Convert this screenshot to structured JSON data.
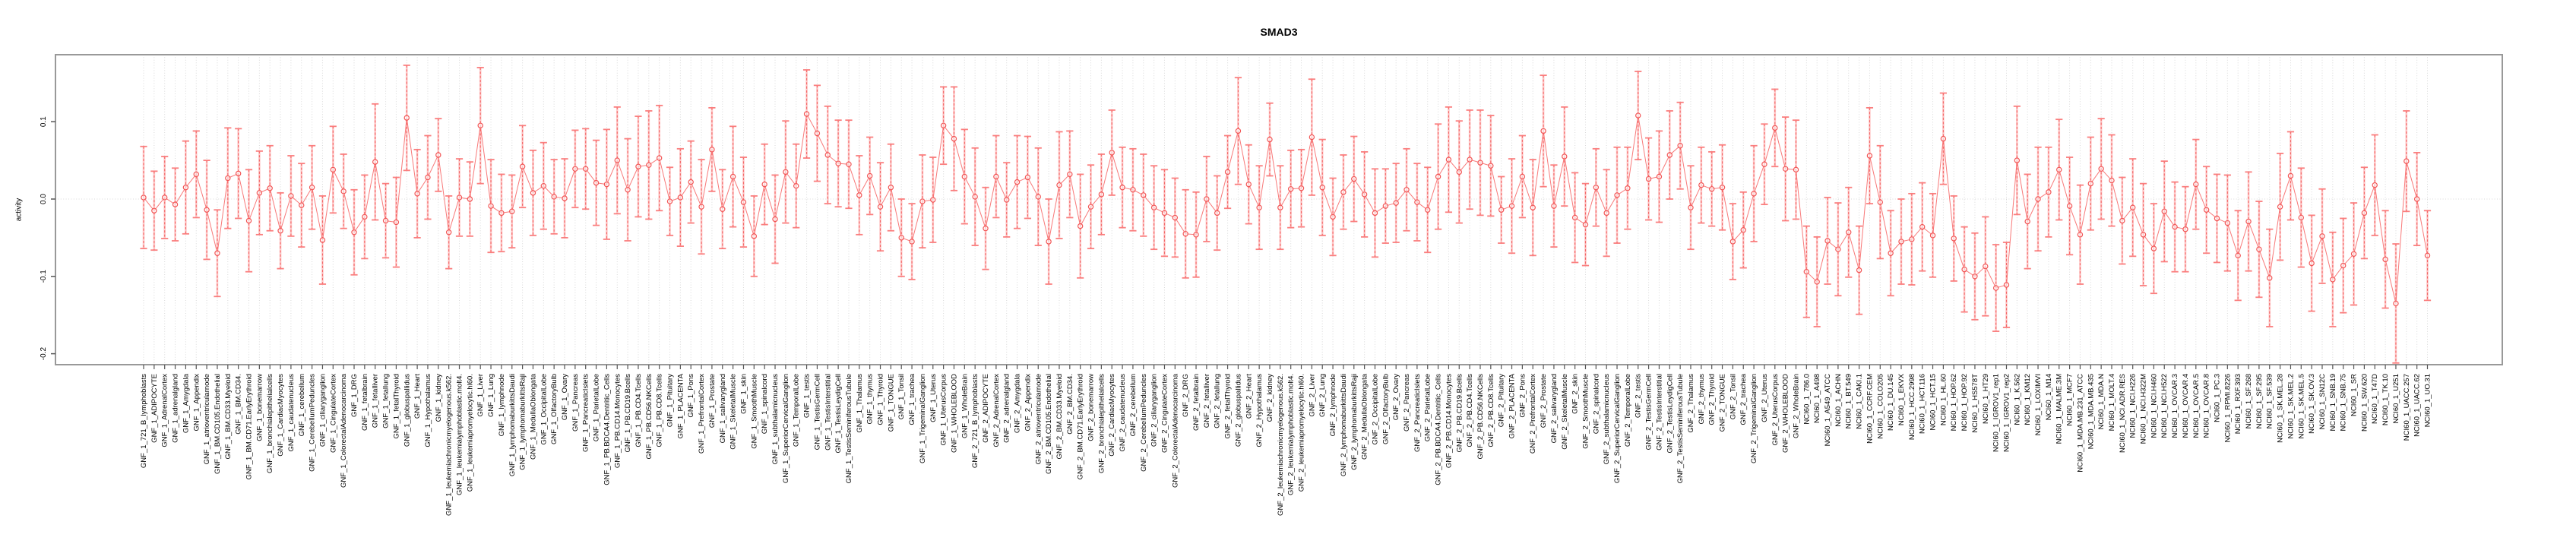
{
  "chart_data": {
    "type": "line",
    "title": "SMAD3",
    "xlabel": "",
    "ylabel": "activity",
    "ylim": [
      -0.214,
      0.187
    ],
    "yticks": [
      0.1,
      0.0,
      -0.1,
      -0.2
    ],
    "ytick_labels": [
      "0.1",
      "0.0",
      "-0.1",
      "-0.2"
    ],
    "grid": "vertical-dotted-per-category-plus-zero-line",
    "legend_position": "none",
    "marker": "open-circle",
    "error_bars": true,
    "colors": {
      "series": "#f25555",
      "series_light": "#ff9e9e",
      "gridline": "#d9d9d9",
      "box": "#999999",
      "tick": "#555555",
      "text": "#000000",
      "background": "#ffffff"
    },
    "categories": [
      "GNF_1_721_B_lymphoblasts",
      "GNF_1_ADIPOCYTE",
      "GNF_1_AdrenalCortex",
      "GNF_1_adrenalgland",
      "GNF_1_Amygdala",
      "GNF_1_Appendix",
      "GNF_1_atrioventricularnode",
      "GNF_1_BM.CD105.Endothelial",
      "GNF_1_BM.CD33.Myeloid",
      "GNF_1_BM.CD34.",
      "GNF_1_BM.CD71.EarlyErythroid",
      "GNF_1_bonemarrow",
      "GNF_1_bronchialepithelialcells",
      "GNF_1_CardiacMyocytes",
      "GNF_1_caudatenucleus",
      "GNF_1_cerebellum",
      "GNF_1_CerebellumPeduncles",
      "GNF_1_ciliaryganglion",
      "GNF_1_CingulateCortex",
      "GNF_1_ColorectalAdenocarcinoma",
      "GNF_1_DRG",
      "GNF_1_fetalbrain",
      "GNF_1_fetalliver",
      "GNF_1_fetallung",
      "GNF_1_fetalThyroid",
      "GNF_1_globuspallidus",
      "GNF_1_Heart",
      "GNF_1_Hypothalamus",
      "GNF_1_kidney",
      "GNF_1_leukemiachronicmyelogenous.k562.",
      "GNF_1_leukemialymphoblastic.molt4.",
      "GNF_1_leukemiapromyelocytic.hl60.",
      "GNF_1_Liver",
      "GNF_1_Lung",
      "GNF_1_lymphnode",
      "GNF_1_lymphomaburkittsDaudi",
      "GNF_1_lymphomaburkittsRaji",
      "GNF_1_MedullaOblongata",
      "GNF_1_OccipitalLobe",
      "GNF_1_OlfactoryBulb",
      "GNF_1_Ovary",
      "GNF_1_Pancreas",
      "GNF_1_PancreaticIslets",
      "GNF_1_ParietalLobe",
      "GNF_1_PB.BDCA4.Dentritic_Cells",
      "GNF_1_PB.CD14.Monocytes",
      "GNF_1_PB.CD19.Bcells",
      "GNF_1_PB.CD4.Tcells",
      "GNF_1_PB.CD56.NKCells",
      "GNF_1_PB.CD8.Tcells",
      "GNF_1_Pituitary",
      "GNF_1_PLACENTA",
      "GNF_1_Pons",
      "GNF_1_PrefrontalCortex",
      "GNF_1_Prostate",
      "GNF_1_salivarygland",
      "GNF_1_SkeletalMuscle",
      "GNF_1_skin",
      "GNF_1_SmoothMuscle",
      "GNF_1_spinalcord",
      "GNF_1_subthalamicnucleus",
      "GNF_1_SuperiorCervicalGanglion",
      "GNF_1_TemporalLobe",
      "GNF_1_testis",
      "GNF_1_TestisGermCell",
      "GNF_1_TestisInterstitial",
      "GNF_1_TestisLeydigCell",
      "GNF_1_TestisSeminiferousTubule",
      "GNF_1_Thalamus",
      "GNF_1_thymus",
      "GNF_1_Thyroid",
      "GNF_1_TONGUE",
      "GNF_1_Tonsil",
      "GNF_1_trachea",
      "GNF_1_TrigeminalGanglion",
      "GNF_1_Uterus",
      "GNF_1_UterusCorpus",
      "GNF_1_WHOLEBLOOD",
      "GNF_1_WholeBrain",
      "GNF_2_721_B_lymphoblasts",
      "GNF_2_ADIPOCYTE",
      "GNF_2_AdrenalCortex",
      "GNF_2_adrenalgland",
      "GNF_2_Amygdala",
      "GNF_2_Appendix",
      "GNF_2_atrioventricularnode",
      "GNF_2_BM.CD105.Endothelial",
      "GNF_2_BM.CD33.Myeloid",
      "GNF_2_BM.CD34.",
      "GNF_2_BM.CD71.EarlyErythroid",
      "GNF_2_bonemarrow",
      "GNF_2_bronchialepithelialcells",
      "GNF_2_CardiacMyocytes",
      "GNF_2_caudatenucleus",
      "GNF_2_cerebellum",
      "GNF_2_CerebellumPeduncles",
      "GNF_2_ciliaryganglion",
      "GNF_2_CingulateCortex",
      "GNF_2_ColorectalAdenocarcinoma",
      "GNF_2_DRG",
      "GNF_2_fetalbrain",
      "GNF_2_fetalliver",
      "GNF_2_fetallung",
      "GNF_2_fetalThyroid",
      "GNF_2_globuspallidus",
      "GNF_2_Heart",
      "GNF_2_Hypothalamus",
      "GNF_2_kidney",
      "GNF_2_leukemiachronicmyelogenous.k562.",
      "GNF_2_leukemialymphoblastic.molt4.",
      "GNF_2_leukemiapromyelocytic.hl60.",
      "GNF_2_Liver",
      "GNF_2_Lung",
      "GNF_2_lymphnode",
      "GNF_2_lymphomaburkittsDaudi",
      "GNF_2_lymphomaburkittsRaji",
      "GNF_2_MedullaOblongata",
      "GNF_2_OccipitalLobe",
      "GNF_2_OlfactoryBulb",
      "GNF_2_Ovary",
      "GNF_2_Pancreas",
      "GNF_2_PancreaticIslets",
      "GNF_2_ParietalLobe",
      "GNF_2_PB.BDCA4.Dentritic_Cells",
      "GNF_2_PB.CD14.Monocytes",
      "GNF_2_PB.CD19.Bcells",
      "GNF_2_PB.CD4.Tcells",
      "GNF_2_PB.CD56.NKCells",
      "GNF_2_PB.CD8.Tcells",
      "GNF_2_Pituitary",
      "GNF_2_PLACENTA",
      "GNF_2_Pons",
      "GNF_2_PrefrontalCortex",
      "GNF_2_Prostate",
      "GNF_2_salivarygland",
      "GNF_2_SkeletalMuscle",
      "GNF_2_skin",
      "GNF_2_SmoothMuscle",
      "GNF_2_spinalcord",
      "GNF_2_subthalamicnucleus",
      "GNF_2_SuperiorCervicalGanglion",
      "GNF_2_TemporalLobe",
      "GNF_2_testis",
      "GNF_2_TestisGermCell",
      "GNF_2_TestisInterstitial",
      "GNF_2_TestisLeydigCell",
      "GNF_2_TestisSeminiferousTubule",
      "GNF_2_Thalamus",
      "GNF_2_thymus",
      "GNF_2_Thyroid",
      "GNF_2_TONGUE",
      "GNF_2_Tonsil",
      "GNF_2_trachea",
      "GNF_2_TrigeminalGanglion",
      "GNF_2_Uterus",
      "GNF_2_UterusCorpus",
      "GNF_2_WHOLEBLOOD",
      "GNF_2_WholeBrain",
      "NCI60_1_786.0",
      "NCI60_1_A498",
      "NCI60_1_A549_ATCC",
      "NCI60_1_ACHN",
      "NCI60_1_BT.549",
      "NCI60_1_CAKI.1",
      "NCI60_1_CCRF.CEM",
      "NCI60_1_COLO205",
      "NCI60_1_DU.145",
      "NCI60_1_EKVX",
      "NCI60_1_HCC.2998",
      "NCI60_1_HCT.116",
      "NCI60_1_HCT.15",
      "NCI60_1_HL.60",
      "NCI60_1_HOP.62",
      "NCI60_1_HOP.92",
      "NCI60_1_HS578T",
      "NCI60_1_HT29",
      "NCI60_1_IGROV1_rep1",
      "NCI60_1_IGROV1_rep2",
      "NCI60_1_K.562",
      "NCI60_1_KM12",
      "NCI60_1_LOXIMVI",
      "NCI60_1_M14",
      "NCI60_1_MALME.3M",
      "NCI60_1_MCF7",
      "NCI60_1_MDA.MB.231_ATCC",
      "NCI60_1_MDA.MB.435",
      "NCI60_1_MDA.N",
      "NCI60_1_MOLT.4",
      "NCI60_1_NCI.ADR.RES",
      "NCI60_1_NCI.H226",
      "NCI60_1_NCI.H322M",
      "NCI60_1_NCI.H460",
      "NCI60_1_NCI.H522",
      "NCI60_1_OVCAR.3",
      "NCI60_1_OVCAR.4",
      "NCI60_1_OVCAR.5",
      "NCI60_1_OVCAR.8",
      "NCI60_1_PC.3",
      "NCI60_1_RPMI.8226",
      "NCI60_1_RXF.393",
      "NCI60_1_SF.268",
      "NCI60_1_SF.295",
      "NCI60_1_SF.539",
      "NCI60_1_SK.MEL.28",
      "NCI60_1_SK.MEL.2",
      "NCI60_1_SK.MEL.5",
      "NCI60_1_SK.OV.3",
      "NCI60_1_SN12C",
      "NCI60_1_SNB.19",
      "NCI60_1_SNB.75",
      "NCI60_1_SR",
      "NCI60_1_SW.620",
      "NCI60_1_T47D",
      "NCI60_1_TK.10",
      "NCI60_1_U251",
      "NCI60_1_UACC.257",
      "NCI60_1_UACC.62",
      "NCI60_1_UO.31"
    ],
    "values": [
      0.002,
      -0.015,
      0.002,
      -0.007,
      0.015,
      0.032,
      -0.014,
      -0.07,
      0.027,
      0.033,
      -0.028,
      0.008,
      0.014,
      -0.041,
      0.004,
      -0.008,
      0.015,
      -0.053,
      0.038,
      0.01,
      -0.043,
      -0.023,
      0.048,
      -0.028,
      -0.03,
      0.105,
      0.007,
      0.028,
      0.057,
      -0.043,
      0.002,
      0.0,
      0.095,
      -0.009,
      -0.018,
      -0.016,
      0.042,
      0.008,
      0.017,
      0.003,
      0.001,
      0.039,
      0.039,
      0.021,
      0.019,
      0.05,
      0.012,
      0.042,
      0.044,
      0.053,
      -0.003,
      0.002,
      0.022,
      -0.01,
      0.064,
      -0.013,
      0.029,
      -0.004,
      -0.048,
      0.019,
      -0.026,
      0.035,
      0.017,
      0.11,
      0.085,
      0.057,
      0.046,
      0.045,
      0.005,
      0.03,
      -0.01,
      0.015,
      -0.05,
      -0.055,
      -0.003,
      -0.001,
      0.095,
      0.078,
      0.029,
      0.003,
      -0.038,
      0.029,
      -0.001,
      0.022,
      0.028,
      0.003,
      -0.055,
      0.018,
      0.032,
      -0.035,
      -0.01,
      0.006,
      0.06,
      0.015,
      0.012,
      0.005,
      -0.011,
      -0.018,
      -0.024,
      -0.045,
      -0.046,
      0.0,
      -0.018,
      0.035,
      0.088,
      0.019,
      -0.011,
      0.077,
      -0.011,
      0.013,
      0.014,
      0.08,
      0.015,
      -0.023,
      0.009,
      0.026,
      0.006,
      -0.018,
      -0.009,
      -0.005,
      0.012,
      -0.004,
      -0.014,
      0.029,
      0.051,
      0.035,
      0.051,
      0.047,
      0.043,
      -0.014,
      -0.009,
      0.029,
      -0.011,
      0.088,
      -0.009,
      0.055,
      -0.024,
      -0.033,
      0.015,
      -0.018,
      0.005,
      0.014,
      0.108,
      0.026,
      0.029,
      0.057,
      0.069,
      -0.011,
      0.018,
      0.013,
      0.015,
      -0.055,
      -0.04,
      0.007,
      0.045,
      0.092,
      0.039,
      0.038,
      -0.094,
      -0.107,
      -0.054,
      -0.065,
      -0.043,
      -0.092,
      0.056,
      -0.004,
      -0.07,
      -0.055,
      -0.052,
      -0.036,
      -0.047,
      0.078,
      -0.051,
      -0.091,
      -0.1,
      -0.087,
      -0.115,
      -0.111,
      0.05,
      -0.029,
      0.0,
      0.009,
      0.038,
      -0.009,
      -0.046,
      0.02,
      0.039,
      0.024,
      -0.028,
      -0.011,
      -0.046,
      -0.064,
      -0.016,
      -0.036,
      -0.039,
      0.019,
      -0.014,
      -0.025,
      -0.031,
      -0.073,
      -0.029,
      -0.065,
      -0.102,
      -0.01,
      0.03,
      -0.024,
      -0.083,
      -0.048,
      -0.104,
      -0.086,
      -0.071,
      -0.018,
      0.018,
      -0.078,
      -0.135,
      0.049,
      0.0,
      -0.073
    ],
    "errors": [
      0.066,
      0.051,
      0.053,
      0.047,
      0.06,
      0.056,
      0.064,
      0.056,
      0.065,
      0.058,
      0.066,
      0.054,
      0.055,
      0.049,
      0.052,
      0.054,
      0.054,
      0.057,
      0.056,
      0.048,
      0.055,
      0.054,
      0.075,
      0.048,
      0.058,
      0.068,
      0.057,
      0.054,
      0.047,
      0.047,
      0.05,
      0.048,
      0.075,
      0.06,
      0.05,
      0.047,
      0.053,
      0.055,
      0.056,
      0.048,
      0.051,
      0.05,
      0.052,
      0.055,
      0.071,
      0.069,
      0.066,
      0.065,
      0.07,
      0.068,
      0.044,
      0.063,
      0.053,
      0.061,
      0.054,
      0.051,
      0.065,
      0.058,
      0.052,
      0.052,
      0.057,
      0.066,
      0.054,
      0.057,
      0.062,
      0.063,
      0.056,
      0.057,
      0.051,
      0.05,
      0.057,
      0.056,
      0.05,
      0.049,
      0.06,
      0.055,
      0.05,
      0.067,
      0.061,
      0.063,
      0.053,
      0.053,
      0.048,
      0.06,
      0.053,
      0.063,
      0.055,
      0.069,
      0.056,
      0.067,
      0.054,
      0.052,
      0.055,
      0.052,
      0.053,
      0.053,
      0.054,
      0.056,
      0.051,
      0.057,
      0.055,
      0.055,
      0.048,
      0.047,
      0.069,
      0.051,
      0.054,
      0.047,
      0.054,
      0.05,
      0.05,
      0.075,
      0.062,
      0.05,
      0.048,
      0.055,
      0.055,
      0.057,
      0.048,
      0.051,
      0.053,
      0.05,
      0.055,
      0.068,
      0.068,
      0.066,
      0.064,
      0.068,
      0.065,
      0.043,
      0.061,
      0.053,
      0.062,
      0.072,
      0.053,
      0.064,
      0.058,
      0.053,
      0.05,
      0.056,
      0.062,
      0.053,
      0.057,
      0.053,
      0.059,
      0.057,
      0.056,
      0.054,
      0.049,
      0.048,
      0.055,
      0.049,
      0.049,
      0.062,
      0.052,
      0.05,
      0.067,
      0.064,
      0.059,
      0.058,
      0.056,
      0.06,
      0.058,
      0.057,
      0.062,
      0.073,
      0.055,
      0.055,
      0.059,
      0.057,
      0.054,
      0.059,
      0.055,
      0.055,
      0.056,
      0.064,
      0.056,
      0.055,
      0.07,
      0.061,
      0.067,
      0.058,
      0.065,
      0.063,
      0.064,
      0.06,
      0.065,
      0.059,
      0.056,
      0.063,
      0.066,
      0.058,
      0.065,
      0.058,
      0.055,
      0.058,
      0.056,
      0.057,
      0.062,
      0.058,
      0.064,
      0.062,
      0.063,
      0.069,
      0.057,
      0.064,
      0.062,
      0.061,
      0.061,
      0.061,
      0.066,
      0.059,
      0.065,
      0.063,
      0.077,
      0.065,
      0.06,
      0.058
    ]
  }
}
